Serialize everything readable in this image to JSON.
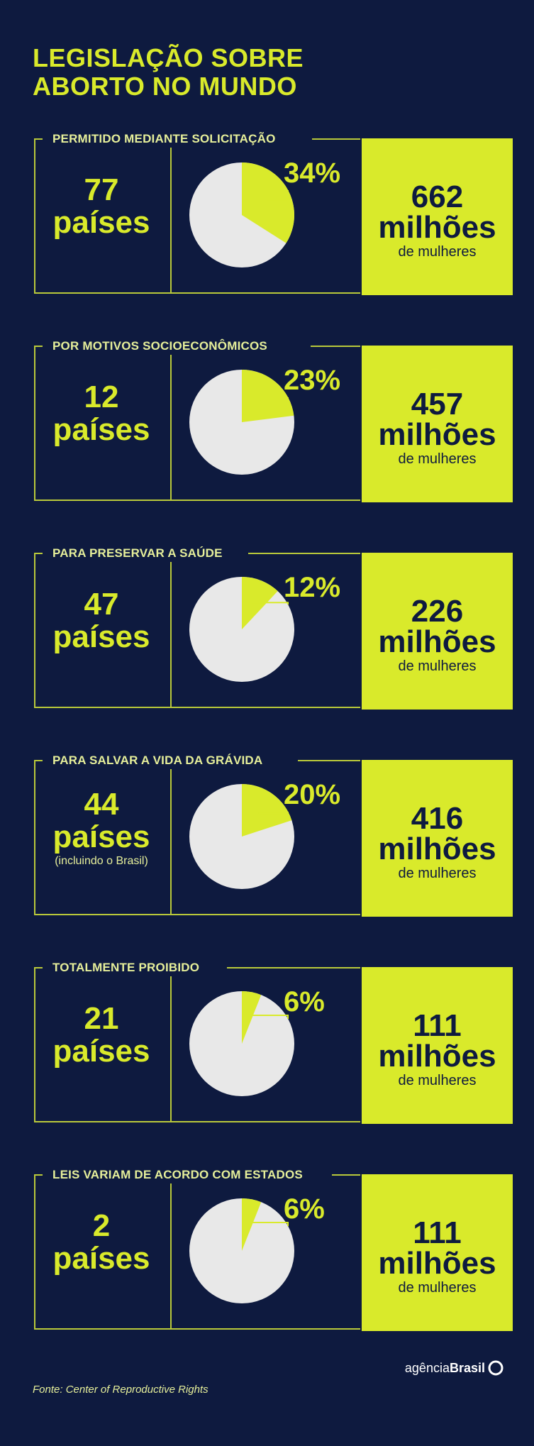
{
  "title_line1": "LEGISLAÇÃO SOBRE",
  "title_line2": "ABORTO NO MUNDO",
  "colors": {
    "background": "#0e1a3f",
    "accent": "#d9ea2b",
    "pie_base": "#e8e8e8"
  },
  "chart_data": {
    "type": "pie",
    "title": "LEGISLAÇÃO SOBRE ABORTO NO MUNDO",
    "unit": "% de mulheres",
    "categories": [
      "PERMITIDO MEDIANTE SOLICITAÇÃO",
      "POR MOTIVOS SOCIOECONÔMICOS",
      "PARA PRESERVAR A SAÚDE",
      "PARA SALVAR A VIDA DA GRÁVIDA",
      "TOTALMENTE PROIBIDO",
      "LEIS VARIAM DE ACORDO COM ESTADOS"
    ],
    "values": [
      34,
      23,
      12,
      20,
      6,
      6
    ],
    "value_labels": [
      "34%",
      "23%",
      "12%",
      "20%",
      "6%",
      "6%"
    ]
  },
  "categories": [
    {
      "label": "PERMITIDO MEDIANTE SOLICITAÇÃO",
      "countries": "77",
      "countries_word": "países",
      "note": "",
      "percent": "34%",
      "women_num": "662",
      "women_unit": "milhões",
      "women_sub": "de mulheres"
    },
    {
      "label": "POR MOTIVOS SOCIOECONÔMICOS",
      "countries": "12",
      "countries_word": "países",
      "note": "",
      "percent": "23%",
      "women_num": "457",
      "women_unit": "milhões",
      "women_sub": "de mulheres"
    },
    {
      "label": "PARA PRESERVAR A SAÚDE",
      "countries": "47",
      "countries_word": "países",
      "note": "",
      "percent": "12%",
      "women_num": "226",
      "women_unit": "milhões",
      "women_sub": "de mulheres"
    },
    {
      "label": "PARA SALVAR A VIDA DA GRÁVIDA",
      "countries": "44",
      "countries_word": "países",
      "note": "(incluindo o Brasil)",
      "percent": "20%",
      "women_num": "416",
      "women_unit": "milhões",
      "women_sub": "de mulheres"
    },
    {
      "label": "TOTALMENTE PROIBIDO",
      "countries": "21",
      "countries_word": "países",
      "note": "",
      "percent": "6%",
      "women_num": "111",
      "women_unit": "milhões",
      "women_sub": "de mulheres"
    },
    {
      "label": "LEIS VARIAM DE ACORDO COM ESTADOS",
      "countries": "2",
      "countries_word": "países",
      "note": "",
      "percent": "6%",
      "women_num": "111",
      "women_unit": "milhões",
      "women_sub": "de mulheres"
    }
  ],
  "source": "Fonte: Center of Reproductive Rights",
  "logo": {
    "prefix": "agência",
    "brand": "Brasil"
  }
}
